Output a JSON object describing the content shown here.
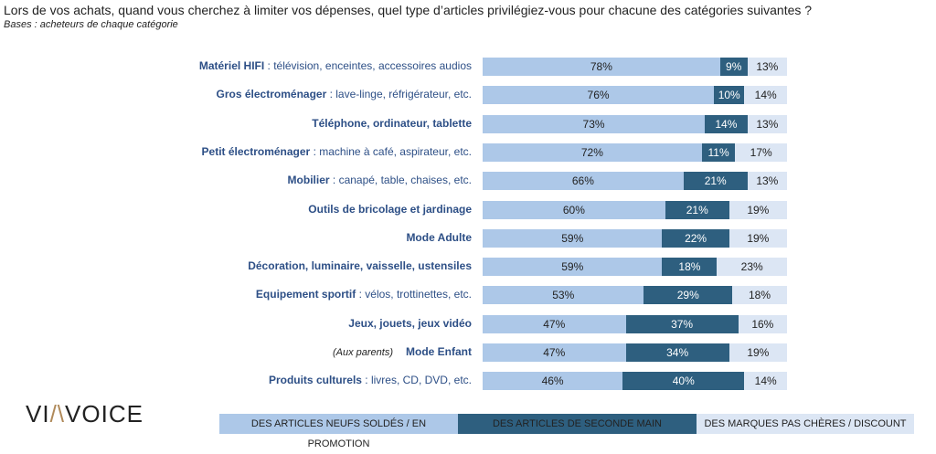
{
  "title": "Lors de vos achats, quand vous cherchez à limiter vos dépenses, quel type d’articles privilégiez-vous pour chacune des catégories suivantes ?",
  "subtitle": "Bases : acheteurs de chaque catégorie",
  "logo": "VIAVOICE",
  "chart_data": {
    "type": "bar",
    "stacked": true,
    "orientation": "horizontal",
    "title": "Lors de vos achats, quand vous cherchez à limiter vos dépenses, quel type d’articles privilégiez-vous pour chacune des catégories suivantes ?",
    "legend_position": "bottom",
    "colors": [
      "#adc8e8",
      "#2e5f7f",
      "#dce6f4"
    ],
    "categories": [
      {
        "bold": "Matériel HIFI",
        "rest": " : télévision, enceintes, accessoires audios",
        "prefix": ""
      },
      {
        "bold": "Gros électroménager",
        "rest": " : lave-linge, réfrigérateur, etc.",
        "prefix": ""
      },
      {
        "bold": "Téléphone, ordinateur, tablette",
        "rest": "",
        "prefix": ""
      },
      {
        "bold": "Petit électroménager",
        "rest": " : machine à café, aspirateur, etc.",
        "prefix": ""
      },
      {
        "bold": "Mobilier",
        "rest": " : canapé, table, chaises, etc.",
        "prefix": ""
      },
      {
        "bold": "Outils de bricolage et jardinage",
        "rest": "",
        "prefix": ""
      },
      {
        "bold": "Mode Adulte",
        "rest": "",
        "prefix": ""
      },
      {
        "bold": "Décoration, luminaire, vaisselle, ustensiles",
        "rest": "",
        "prefix": ""
      },
      {
        "bold": "Equipement sportif",
        "rest": " : vélos, trottinettes, etc.",
        "prefix": ""
      },
      {
        "bold": "Jeux, jouets, jeux vidéo",
        "rest": "",
        "prefix": ""
      },
      {
        "bold": "Mode Enfant",
        "rest": "",
        "prefix": "(Aux parents)"
      },
      {
        "bold": "Produits culturels",
        "rest": " : livres, CD, DVD, etc.",
        "prefix": ""
      }
    ],
    "series": [
      {
        "name": "DES ARTICLES NEUFS SOLDÉS / EN PROMOTION",
        "values": [
          78,
          76,
          73,
          72,
          66,
          60,
          59,
          59,
          53,
          47,
          47,
          46
        ]
      },
      {
        "name": "DES ARTICLES DE SECONDE MAIN",
        "values": [
          9,
          10,
          14,
          11,
          21,
          21,
          22,
          18,
          29,
          37,
          34,
          40
        ]
      },
      {
        "name": "DES MARQUES PAS CHÈRES / DISCOUNT",
        "values": [
          13,
          14,
          13,
          17,
          13,
          19,
          19,
          23,
          18,
          16,
          19,
          14
        ]
      }
    ]
  }
}
